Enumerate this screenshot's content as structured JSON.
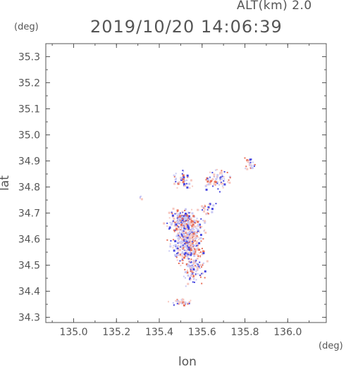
{
  "chart_data": {
    "type": "heatmap",
    "title": "2019/10/20 14:06:39",
    "subtitle": "ALT(km) 2.0",
    "xlabel": "lon",
    "ylabel": "lat",
    "xunit": "(deg)",
    "yunit": "(deg)",
    "xlim": [
      134.87,
      136.18
    ],
    "ylim": [
      34.28,
      35.35
    ],
    "x_ticks": [
      "135.0",
      "135.2",
      "135.4",
      "135.6",
      "135.8",
      "136.0"
    ],
    "x_tick_values": [
      135.0,
      135.2,
      135.4,
      135.6,
      135.8,
      136.0
    ],
    "y_ticks": [
      "34.3",
      "34.4",
      "34.5",
      "34.6",
      "34.7",
      "34.8",
      "34.9",
      "35.0",
      "35.1",
      "35.2",
      "35.3"
    ],
    "y_tick_values": [
      34.3,
      34.4,
      34.5,
      34.6,
      34.7,
      34.8,
      34.9,
      35.0,
      35.1,
      35.2,
      35.3
    ],
    "grid": false,
    "colors": {
      "positive": "#e8705a",
      "negative": "#4a4ae0",
      "faint_positive": "#f7c8c0",
      "faint_negative": "#c8c8f4",
      "axis": "#555555"
    },
    "clusters": [
      {
        "lon": 135.53,
        "lat": 34.6,
        "slon": 0.055,
        "slat": 0.075,
        "n": 520
      },
      {
        "lon": 135.5,
        "lat": 34.68,
        "slon": 0.05,
        "slat": 0.03,
        "n": 140
      },
      {
        "lon": 135.56,
        "lat": 34.48,
        "slon": 0.04,
        "slat": 0.04,
        "n": 90
      },
      {
        "lon": 135.5,
        "lat": 34.36,
        "slon": 0.04,
        "slat": 0.01,
        "n": 40
      },
      {
        "lon": 135.67,
        "lat": 34.83,
        "slon": 0.05,
        "slat": 0.035,
        "n": 70
      },
      {
        "lon": 135.5,
        "lat": 34.83,
        "slon": 0.04,
        "slat": 0.03,
        "n": 45
      },
      {
        "lon": 135.82,
        "lat": 34.89,
        "slon": 0.02,
        "slat": 0.02,
        "n": 25
      },
      {
        "lon": 135.31,
        "lat": 34.76,
        "slon": 0.005,
        "slat": 0.008,
        "n": 5
      },
      {
        "lon": 135.62,
        "lat": 34.72,
        "slon": 0.03,
        "slat": 0.02,
        "n": 30
      }
    ]
  }
}
